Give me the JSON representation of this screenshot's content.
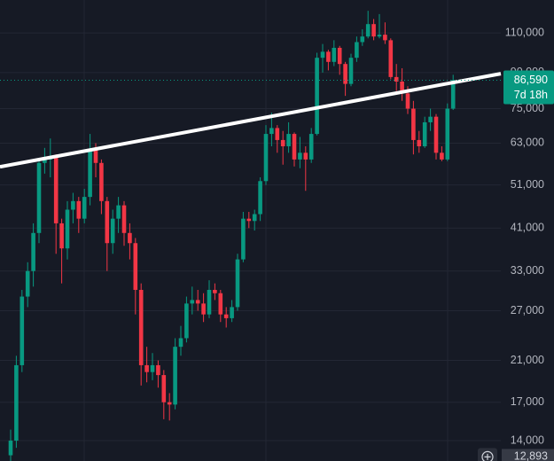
{
  "chart_data": {
    "type": "candlestick",
    "log": true,
    "grid": true,
    "up_color": "#089981",
    "down_color": "#f23645",
    "ylim": [
      12630,
      129900
    ],
    "yticks": [
      {
        "value": 110000,
        "label": "110,000"
      },
      {
        "value": 90000,
        "label": "90,000"
      },
      {
        "value": 75000,
        "label": "75,000"
      },
      {
        "value": 63000,
        "label": "63,000"
      },
      {
        "value": 51000,
        "label": "51,000"
      },
      {
        "value": 41000,
        "label": "41,000"
      },
      {
        "value": 33000,
        "label": "33,000"
      },
      {
        "value": 27000,
        "label": "27,000"
      },
      {
        "value": 21000,
        "label": "21,000"
      },
      {
        "value": 17000,
        "label": "17,000"
      },
      {
        "value": 14000,
        "label": "14,000"
      }
    ],
    "open": [
      13000,
      14000,
      20500,
      29000,
      33000,
      40000,
      57000,
      58000,
      59000,
      42000,
      37000,
      45000,
      47000,
      43000,
      48000,
      61000,
      57000,
      47000,
      38000,
      43000,
      46000,
      40000,
      38000,
      30000,
      20500,
      19800,
      20500,
      19500,
      17000,
      16800,
      22500,
      23500,
      28000,
      28500,
      28000,
      26500,
      30000,
      29500,
      26500,
      26000,
      27500,
      35000,
      43000,
      42500,
      44000,
      52000,
      66000,
      68000,
      64000,
      62000,
      66000,
      58000,
      60000,
      58000,
      66000,
      97000,
      100000,
      95000,
      102000,
      94000,
      85000,
      97000,
      105000,
      108000,
      115000,
      108000,
      109000,
      106000,
      88000,
      86000,
      81000,
      75000,
      64000,
      62000,
      70000,
      72000,
      60000,
      58000,
      75000
    ],
    "high": [
      14800,
      21500,
      30000,
      34500,
      42000,
      58500,
      61500,
      64500,
      59500,
      43000,
      47000,
      49000,
      48000,
      50000,
      66000,
      63000,
      58000,
      48000,
      45000,
      48000,
      47000,
      42000,
      39000,
      31000,
      22500,
      21800,
      21000,
      20000,
      17800,
      23500,
      25000,
      29000,
      30500,
      30000,
      29500,
      31500,
      31000,
      30000,
      27500,
      28500,
      36000,
      44500,
      44500,
      45000,
      53000,
      69000,
      73500,
      69000,
      67000,
      70000,
      66500,
      65000,
      62000,
      68000,
      99500,
      104000,
      101000,
      106000,
      103000,
      95000,
      99000,
      108000,
      112000,
      123000,
      118000,
      121000,
      116000,
      107000,
      94000,
      92000,
      84000,
      78000,
      67000,
      72000,
      75000,
      73000,
      62000,
      77000,
      89000
    ],
    "low": [
      12300,
      13500,
      19800,
      27500,
      30500,
      38000,
      54000,
      53000,
      36000,
      31000,
      35000,
      42000,
      40000,
      42000,
      46000,
      53000,
      44000,
      33000,
      36000,
      40000,
      37500,
      35000,
      26500,
      18500,
      18800,
      19000,
      18300,
      15600,
      15500,
      16400,
      21500,
      23000,
      26500,
      27000,
      25500,
      26000,
      28500,
      25500,
      24800,
      25500,
      27000,
      34500,
      41000,
      40500,
      42500,
      51000,
      62000,
      60000,
      56500,
      60000,
      56000,
      55500,
      49500,
      57000,
      65500,
      90000,
      91000,
      93000,
      89000,
      80000,
      84000,
      95000,
      103000,
      107000,
      106000,
      107000,
      104000,
      87000,
      82000,
      78000,
      73000,
      59500,
      60000,
      61500,
      67000,
      58000,
      57500,
      57500,
      74500
    ],
    "close": [
      14000,
      20500,
      29000,
      33000,
      40000,
      57000,
      58000,
      59000,
      42000,
      37000,
      45000,
      47000,
      43000,
      48000,
      61000,
      57000,
      47000,
      38000,
      43000,
      46000,
      40000,
      38000,
      30000,
      20500,
      19800,
      20500,
      19500,
      17000,
      16800,
      22500,
      23500,
      28000,
      28500,
      28000,
      26500,
      30000,
      29500,
      26500,
      26000,
      27500,
      35000,
      43000,
      42500,
      44000,
      52000,
      66000,
      68000,
      64000,
      62000,
      66000,
      58000,
      60000,
      58000,
      66000,
      97000,
      100000,
      95000,
      102000,
      94000,
      85000,
      97000,
      105000,
      108000,
      115000,
      108000,
      109000,
      106000,
      88000,
      86000,
      81000,
      75000,
      64000,
      62000,
      70000,
      72000,
      60000,
      58000,
      75000,
      86590
    ],
    "trendline": {
      "start": 55900,
      "end": 89500,
      "color": "#ffffff"
    },
    "price_label": {
      "value": 86590,
      "label": "86,590",
      "countdown": "7d 18h"
    },
    "crosshair_label": {
      "value": 12893,
      "label": "12,893"
    }
  }
}
